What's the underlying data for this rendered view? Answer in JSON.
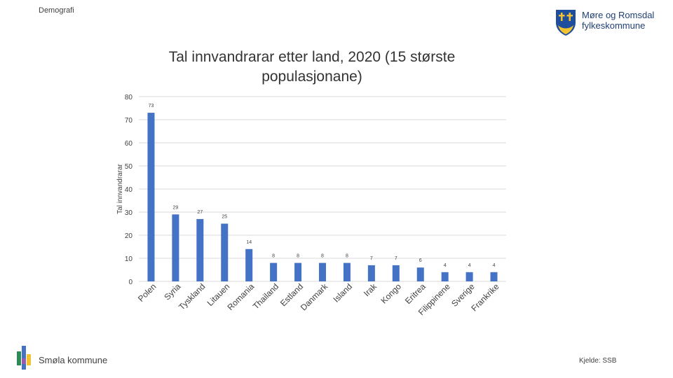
{
  "header": {
    "section_label": "Demografi",
    "logo_line1": "Møre og Romsdal",
    "logo_line2": "fylkeskommune"
  },
  "footer": {
    "municipality": "Smøla kommune",
    "source": "Kjelde: SSB"
  },
  "colors": {
    "bar": "#4472c4",
    "grid": "#d9d9d9",
    "text": "#404040",
    "logo_blue": "#1f3f73"
  },
  "chart_data": {
    "type": "bar",
    "title": "Tal innvandrarar etter land, 2020 (15 største populasjonane)",
    "xlabel": "",
    "ylabel": "Tal innvandrarar",
    "ylim": [
      0,
      80
    ],
    "yticks": [
      "0",
      "10",
      "20",
      "30",
      "40",
      "50",
      "60",
      "70",
      "80"
    ],
    "grid": true,
    "categories": [
      "Polen",
      "Syria",
      "Tyskland",
      "Litauen",
      "Romania",
      "Thailand",
      "Estland",
      "Danmark",
      "Island",
      "Irak",
      "Kongo",
      "Eritrea",
      "Filippinene",
      "Sverige",
      "Frankrike"
    ],
    "values": [
      73,
      29,
      27,
      25,
      14,
      8,
      8,
      8,
      8,
      7,
      7,
      6,
      4,
      4,
      4
    ]
  }
}
